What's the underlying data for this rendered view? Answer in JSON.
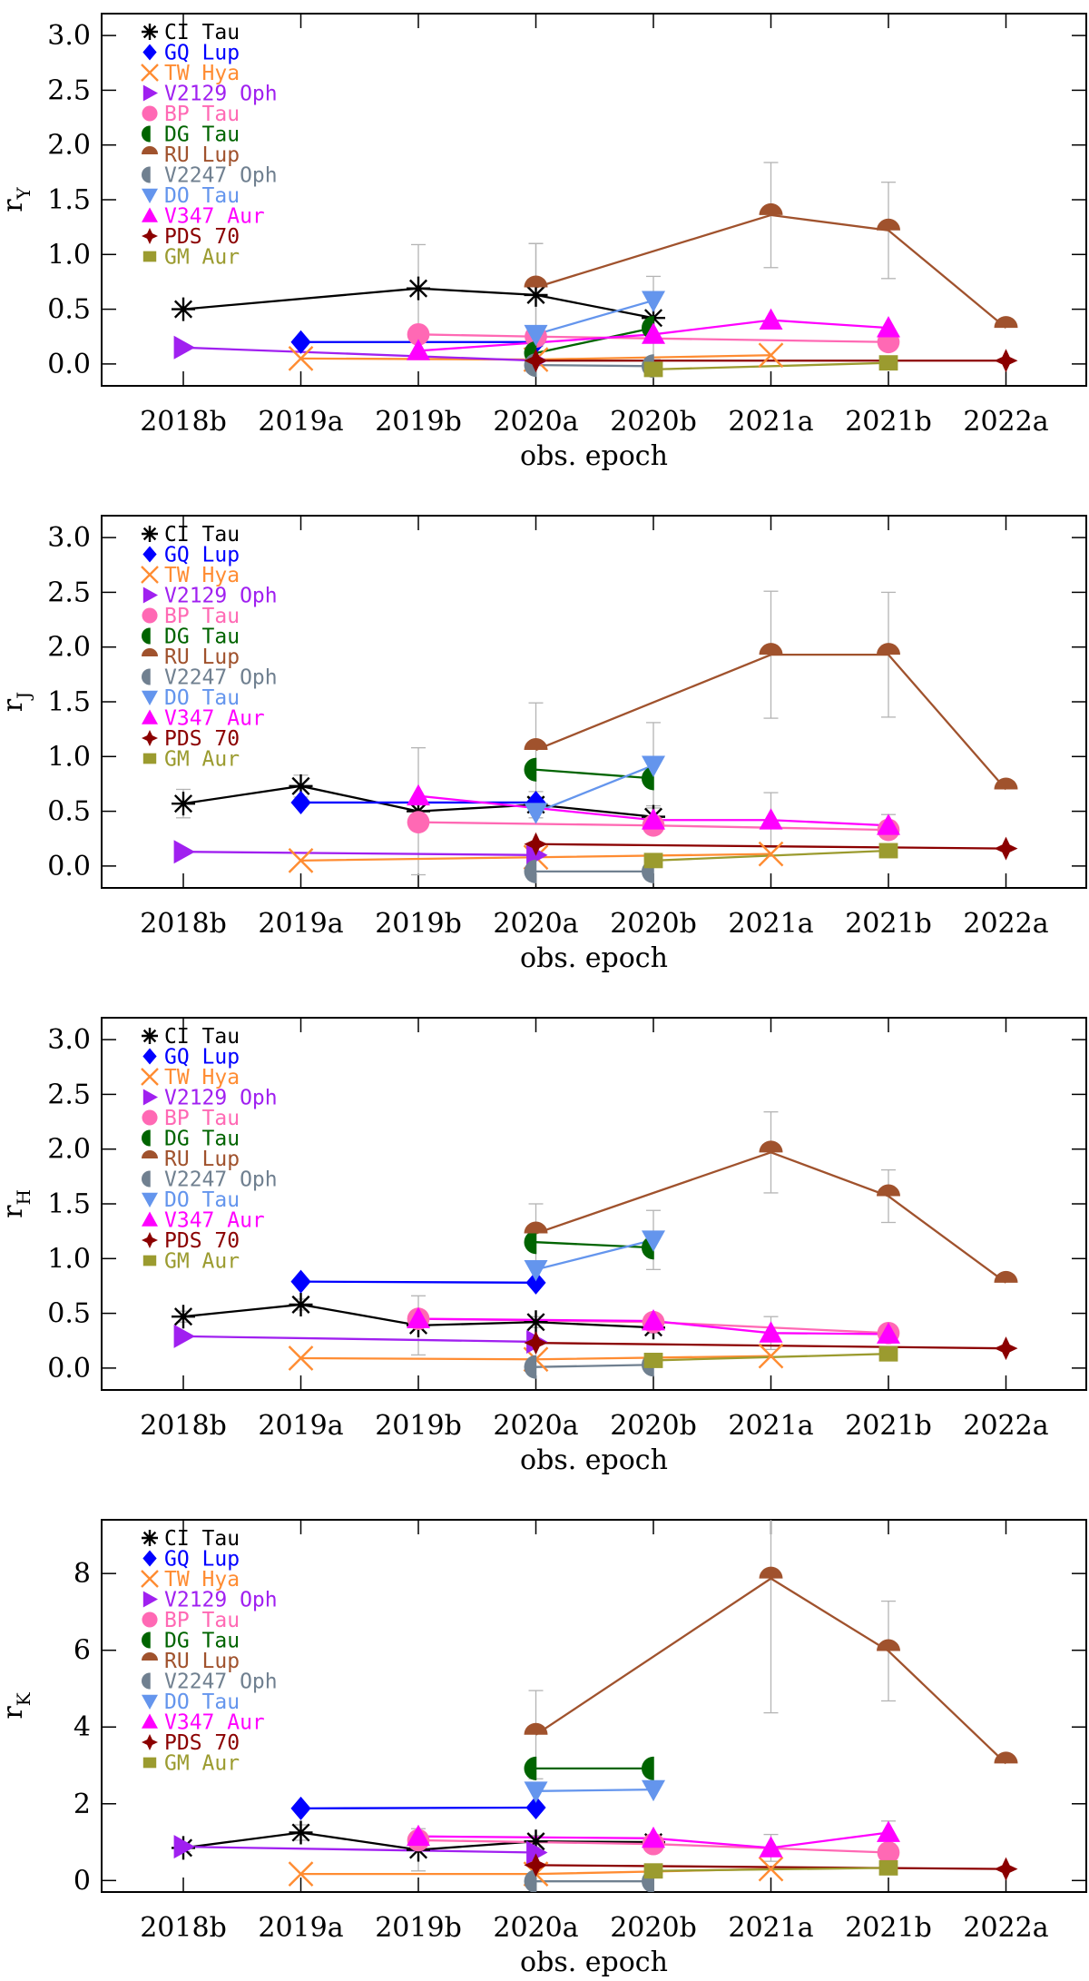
{
  "chart_data": [
    {
      "type": "line",
      "panel": "Y",
      "ylabel_main": "r",
      "ylabel_sub": "Y",
      "xlabel": "obs. epoch",
      "categories": [
        "2018b",
        "2019a",
        "2019b",
        "2020a",
        "2020b",
        "2021a",
        "2021b",
        "2022a"
      ],
      "ylim": [
        -0.2,
        3.2
      ],
      "yticks": [
        "0.0",
        "0.5",
        "1.0",
        "1.5",
        "2.0",
        "2.5",
        "3.0"
      ],
      "ytick_values": [
        0,
        0.5,
        1,
        1.5,
        2,
        2.5,
        3
      ],
      "series": [
        {
          "name": "CI Tau",
          "values": [
            0.5,
            null,
            0.69,
            0.63,
            0.42,
            null,
            null,
            null
          ],
          "errors": [
            0,
            0,
            0.4,
            0.47,
            0.38,
            0,
            0,
            0
          ]
        },
        {
          "name": "GQ Lup",
          "values": [
            null,
            0.2,
            null,
            0.2,
            null,
            null,
            null,
            null
          ]
        },
        {
          "name": "TW Hya",
          "values": [
            null,
            0.05,
            null,
            0.04,
            null,
            0.08,
            null,
            null
          ]
        },
        {
          "name": "V2129 Oph",
          "values": [
            0.15,
            null,
            null,
            0.03,
            null,
            null,
            null,
            null
          ]
        },
        {
          "name": "BP Tau",
          "values": [
            null,
            null,
            0.27,
            0.25,
            null,
            null,
            0.2,
            null
          ]
        },
        {
          "name": "DG Tau",
          "values": [
            null,
            null,
            null,
            0.1,
            0.33,
            null,
            null,
            null
          ]
        },
        {
          "name": "RU Lup",
          "values": [
            null,
            null,
            null,
            0.7,
            null,
            1.36,
            1.22,
            0.33
          ],
          "errors": [
            0,
            0,
            0,
            0.4,
            0,
            0.48,
            0.44,
            0
          ]
        },
        {
          "name": "V2247 Oph",
          "values": [
            null,
            null,
            null,
            -0.01,
            -0.02,
            null,
            null,
            null
          ]
        },
        {
          "name": "DO Tau",
          "values": [
            null,
            null,
            null,
            0.27,
            0.58,
            null,
            null,
            null
          ]
        },
        {
          "name": "V347 Aur",
          "values": [
            null,
            null,
            0.12,
            null,
            0.27,
            0.4,
            0.33,
            null
          ]
        },
        {
          "name": "PDS 70",
          "values": [
            null,
            null,
            null,
            0.03,
            null,
            null,
            null,
            0.03
          ]
        },
        {
          "name": "GM Aur",
          "values": [
            null,
            null,
            null,
            null,
            -0.05,
            null,
            0.01,
            null
          ]
        }
      ]
    },
    {
      "type": "line",
      "panel": "J",
      "ylabel_main": "r",
      "ylabel_sub": "J",
      "xlabel": "obs. epoch",
      "categories": [
        "2018b",
        "2019a",
        "2019b",
        "2020a",
        "2020b",
        "2021a",
        "2021b",
        "2022a"
      ],
      "ylim": [
        -0.2,
        3.2
      ],
      "yticks": [
        "0.0",
        "0.5",
        "1.0",
        "1.5",
        "2.0",
        "2.5",
        "3.0"
      ],
      "ytick_values": [
        0,
        0.5,
        1,
        1.5,
        2,
        2.5,
        3
      ],
      "series": [
        {
          "name": "CI Tau",
          "values": [
            0.57,
            0.73,
            0.5,
            0.56,
            0.45,
            null,
            null,
            null
          ],
          "errors": [
            0.13,
            0.1,
            0.58,
            0.12,
            0.1,
            0,
            0,
            0
          ]
        },
        {
          "name": "GQ Lup",
          "values": [
            null,
            0.58,
            null,
            0.58,
            null,
            null,
            null,
            null
          ]
        },
        {
          "name": "TW Hya",
          "values": [
            null,
            0.05,
            null,
            0.08,
            null,
            0.11,
            null,
            null
          ]
        },
        {
          "name": "V2129 Oph",
          "values": [
            0.13,
            null,
            null,
            0.1,
            null,
            null,
            null,
            null
          ]
        },
        {
          "name": "BP Tau",
          "values": [
            null,
            null,
            0.4,
            null,
            0.37,
            null,
            0.33,
            null
          ]
        },
        {
          "name": "DG Tau",
          "values": [
            null,
            null,
            null,
            0.88,
            0.8,
            null,
            null,
            null
          ]
        },
        {
          "name": "RU Lup",
          "values": [
            null,
            null,
            null,
            1.06,
            null,
            1.93,
            1.93,
            0.7
          ],
          "errors": [
            0,
            0,
            0,
            0.43,
            0,
            0.58,
            0.57,
            0
          ]
        },
        {
          "name": "V2247 Oph",
          "values": [
            null,
            null,
            null,
            -0.05,
            -0.05,
            null,
            null,
            null
          ]
        },
        {
          "name": "DO Tau",
          "values": [
            null,
            null,
            null,
            0.49,
            0.92,
            null,
            null,
            null
          ],
          "errors": [
            0,
            0,
            0,
            0,
            0.39,
            0,
            0,
            0
          ]
        },
        {
          "name": "V347 Aur",
          "values": [
            null,
            null,
            0.64,
            null,
            0.42,
            0.42,
            0.37,
            null
          ],
          "errors": [
            0,
            0,
            0,
            0,
            0,
            0.25,
            0.1,
            0
          ]
        },
        {
          "name": "PDS 70",
          "values": [
            null,
            null,
            null,
            0.2,
            null,
            null,
            null,
            0.16
          ]
        },
        {
          "name": "GM Aur",
          "values": [
            null,
            null,
            null,
            null,
            0.05,
            null,
            0.14,
            null
          ]
        }
      ]
    },
    {
      "type": "line",
      "panel": "H",
      "ylabel_main": "r",
      "ylabel_sub": "H",
      "xlabel": "obs. epoch",
      "categories": [
        "2018b",
        "2019a",
        "2019b",
        "2020a",
        "2020b",
        "2021a",
        "2021b",
        "2022a"
      ],
      "ylim": [
        -0.2,
        3.2
      ],
      "yticks": [
        "0.0",
        "0.5",
        "1.0",
        "1.5",
        "2.0",
        "2.5",
        "3.0"
      ],
      "ytick_values": [
        0,
        0.5,
        1,
        1.5,
        2,
        2.5,
        3
      ],
      "series": [
        {
          "name": "CI Tau",
          "values": [
            0.47,
            0.58,
            0.39,
            0.42,
            0.37,
            null,
            null,
            null
          ],
          "errors": [
            0.05,
            0.05,
            0.27,
            0.05,
            0.05,
            0,
            0,
            0
          ]
        },
        {
          "name": "GQ Lup",
          "values": [
            null,
            0.79,
            null,
            0.78,
            null,
            null,
            null,
            null
          ]
        },
        {
          "name": "TW Hya",
          "values": [
            null,
            0.09,
            null,
            0.08,
            null,
            0.11,
            null,
            null
          ]
        },
        {
          "name": "V2129 Oph",
          "values": [
            0.29,
            null,
            null,
            0.24,
            null,
            null,
            null,
            null
          ]
        },
        {
          "name": "BP Tau",
          "values": [
            null,
            null,
            0.45,
            null,
            0.42,
            null,
            0.32,
            null
          ]
        },
        {
          "name": "DG Tau",
          "values": [
            null,
            null,
            null,
            1.15,
            1.1,
            null,
            null,
            null
          ]
        },
        {
          "name": "RU Lup",
          "values": [
            null,
            null,
            null,
            1.23,
            null,
            1.97,
            1.57,
            0.78
          ],
          "errors": [
            0,
            0,
            0,
            0.27,
            0,
            0.37,
            0.24,
            0
          ]
        },
        {
          "name": "V2247 Oph",
          "values": [
            null,
            null,
            null,
            0.01,
            0.03,
            null,
            null,
            null
          ]
        },
        {
          "name": "DO Tau",
          "values": [
            null,
            null,
            null,
            0.9,
            1.17,
            null,
            null,
            null
          ],
          "errors": [
            0,
            0,
            0,
            0,
            0.27,
            0,
            0,
            0
          ]
        },
        {
          "name": "V347 Aur",
          "values": [
            null,
            null,
            0.45,
            null,
            0.43,
            0.32,
            0.31,
            null
          ],
          "errors": [
            0,
            0,
            0,
            0,
            0,
            0.15,
            0.08,
            0
          ]
        },
        {
          "name": "PDS 70",
          "values": [
            null,
            null,
            null,
            0.23,
            null,
            null,
            null,
            0.18
          ]
        },
        {
          "name": "GM Aur",
          "values": [
            null,
            null,
            null,
            null,
            0.07,
            null,
            0.13,
            null
          ]
        }
      ]
    },
    {
      "type": "line",
      "panel": "K",
      "ylabel_main": "r",
      "ylabel_sub": "K",
      "xlabel": "obs. epoch",
      "categories": [
        "2018b",
        "2019a",
        "2019b",
        "2020a",
        "2020b",
        "2021a",
        "2021b",
        "2022a"
      ],
      "ylim": [
        -0.3,
        9.4
      ],
      "yticks": [
        "0",
        "2",
        "4",
        "6",
        "8"
      ],
      "ytick_values": [
        0,
        2,
        4,
        6,
        8
      ],
      "series": [
        {
          "name": "CI Tau",
          "values": [
            0.85,
            1.25,
            0.8,
            1.02,
            1.0,
            null,
            null,
            null
          ],
          "errors": [
            0.1,
            0.2,
            0.55,
            0.15,
            0.15,
            0,
            0,
            0
          ]
        },
        {
          "name": "GQ Lup",
          "values": [
            null,
            1.88,
            null,
            1.9,
            null,
            null,
            null,
            null
          ]
        },
        {
          "name": "TW Hya",
          "values": [
            null,
            0.17,
            null,
            0.17,
            null,
            0.3,
            null,
            null
          ]
        },
        {
          "name": "V2129 Oph",
          "values": [
            0.88,
            null,
            null,
            0.73,
            null,
            null,
            null,
            null
          ]
        },
        {
          "name": "BP Tau",
          "values": [
            null,
            null,
            1.05,
            null,
            0.95,
            null,
            0.73,
            null
          ]
        },
        {
          "name": "DG Tau",
          "values": [
            null,
            null,
            null,
            2.92,
            2.92,
            null,
            null,
            null
          ]
        },
        {
          "name": "RU Lup",
          "values": [
            null,
            null,
            null,
            3.8,
            null,
            7.87,
            5.98,
            3.05
          ],
          "errors": [
            0,
            0,
            0,
            1.15,
            0,
            3.5,
            1.3,
            0
          ]
        },
        {
          "name": "V2247 Oph",
          "values": [
            null,
            null,
            null,
            -0.02,
            -0.02,
            null,
            null,
            null
          ]
        },
        {
          "name": "DO Tau",
          "values": [
            null,
            null,
            null,
            2.33,
            2.37,
            null,
            null,
            null
          ]
        },
        {
          "name": "V347 Aur",
          "values": [
            null,
            null,
            1.15,
            null,
            1.1,
            0.85,
            1.25,
            null
          ],
          "errors": [
            0,
            0,
            0,
            0,
            0,
            0.35,
            0.3,
            0
          ]
        },
        {
          "name": "PDS 70",
          "values": [
            null,
            null,
            null,
            0.4,
            null,
            null,
            null,
            0.3
          ]
        },
        {
          "name": "GM Aur",
          "values": [
            null,
            null,
            null,
            null,
            0.25,
            null,
            0.33,
            null
          ]
        }
      ]
    }
  ],
  "legend": [
    {
      "label": "CI Tau",
      "marker": "asterisk",
      "color": "#000000"
    },
    {
      "label": "GQ Lup",
      "marker": "diamond",
      "color": "#0000ff"
    },
    {
      "label": "TW Hya",
      "marker": "x",
      "color": "#ff8c32"
    },
    {
      "label": "V2129 Oph",
      "marker": "triangle-right",
      "color": "#a020f0"
    },
    {
      "label": "BP Tau",
      "marker": "circle",
      "color": "#ff69b4"
    },
    {
      "label": "DG Tau",
      "marker": "half-left",
      "color": "#006400"
    },
    {
      "label": "RU Lup",
      "marker": "half-top",
      "color": "#a0522d"
    },
    {
      "label": "V2247 Oph",
      "marker": "half-left",
      "color": "#708090"
    },
    {
      "label": "DO Tau",
      "marker": "triangle-down",
      "color": "#6495ed"
    },
    {
      "label": "V347 Aur",
      "marker": "triangle-up",
      "color": "#ff00ff"
    },
    {
      "label": "PDS 70",
      "marker": "star4",
      "color": "#8b0000"
    },
    {
      "label": "GM Aur",
      "marker": "square",
      "color": "#9b9b2f"
    }
  ],
  "error_bar_color": "#b4b4b4"
}
